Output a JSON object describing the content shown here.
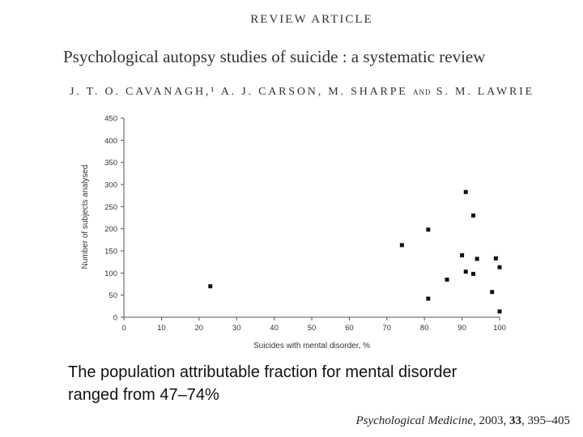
{
  "header": {
    "kicker": "REVIEW ARTICLE"
  },
  "article": {
    "title": "Psychological autopsy studies of suicide : a systematic review",
    "authors_main": "J. T. O. CAVANAGH,¹ A. J. CARSON, M. SHARPE",
    "authors_and": "AND",
    "authors_last": "S. M. LAWRIE"
  },
  "chart_data": {
    "type": "scatter",
    "xlabel": "Suicides with mental disorder, %",
    "ylabel": "Number of subjects analysed",
    "xlim": [
      0,
      100
    ],
    "ylim": [
      0,
      450
    ],
    "xticks": [
      0,
      10,
      20,
      30,
      40,
      50,
      60,
      70,
      80,
      90,
      100
    ],
    "yticks": [
      0,
      50,
      100,
      150,
      200,
      250,
      300,
      350,
      400,
      450
    ],
    "grid": false,
    "points": [
      {
        "x": 23,
        "y": 70
      },
      {
        "x": 74,
        "y": 163
      },
      {
        "x": 81,
        "y": 198
      },
      {
        "x": 81,
        "y": 42
      },
      {
        "x": 86,
        "y": 85
      },
      {
        "x": 90,
        "y": 140
      },
      {
        "x": 91,
        "y": 283
      },
      {
        "x": 91,
        "y": 103
      },
      {
        "x": 93,
        "y": 230
      },
      {
        "x": 93,
        "y": 98
      },
      {
        "x": 94,
        "y": 132
      },
      {
        "x": 98,
        "y": 57
      },
      {
        "x": 99,
        "y": 133
      },
      {
        "x": 100,
        "y": 113
      },
      {
        "x": 100,
        "y": 13
      }
    ]
  },
  "caption": {
    "line1": "The population attributable fraction for mental disorder",
    "line2": "ranged from 47–74%"
  },
  "citation": {
    "journal": "Psychological Medicine",
    "rest": ", 2003, ",
    "volume": "33",
    "pages": ", 395–405"
  }
}
